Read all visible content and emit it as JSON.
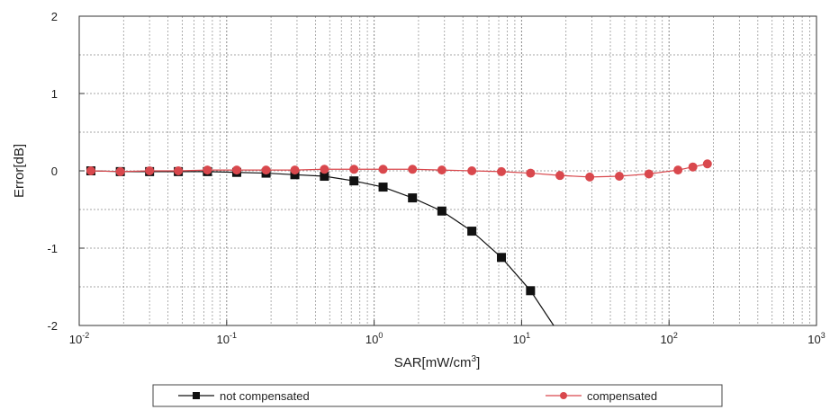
{
  "chart_data": {
    "type": "line",
    "title": "",
    "xlabel": "SAR[mW/cm³]",
    "ylabel": "Error[dB]",
    "xscale": "log",
    "xlim": [
      0.01,
      1000
    ],
    "ylim": [
      -2,
      2
    ],
    "grid": true,
    "x_ticks": [
      {
        "value": 0.01,
        "base": "10",
        "exp": "-2"
      },
      {
        "value": 0.1,
        "base": "10",
        "exp": "-1"
      },
      {
        "value": 1,
        "base": "10",
        "exp": "0"
      },
      {
        "value": 10,
        "base": "10",
        "exp": "1"
      },
      {
        "value": 100,
        "base": "10",
        "exp": "2"
      },
      {
        "value": 1000,
        "base": "10",
        "exp": "3"
      }
    ],
    "y_ticks": [
      {
        "value": 2,
        "label": "2"
      },
      {
        "value": 1,
        "label": "1"
      },
      {
        "value": 0,
        "label": "0"
      },
      {
        "value": -1,
        "label": "-1"
      },
      {
        "value": -2,
        "label": "-2"
      }
    ],
    "legend_position": "bottom",
    "series": [
      {
        "name": "not compensated",
        "color": "#111111",
        "marker": "square",
        "points": [
          {
            "x": 0.012,
            "y": 0.0
          },
          {
            "x": 0.019,
            "y": -0.01
          },
          {
            "x": 0.03,
            "y": -0.01
          },
          {
            "x": 0.047,
            "y": -0.01
          },
          {
            "x": 0.074,
            "y": -0.01
          },
          {
            "x": 0.117,
            "y": -0.02
          },
          {
            "x": 0.185,
            "y": -0.03
          },
          {
            "x": 0.29,
            "y": -0.05
          },
          {
            "x": 0.46,
            "y": -0.07
          },
          {
            "x": 0.73,
            "y": -0.13
          },
          {
            "x": 1.15,
            "y": -0.21
          },
          {
            "x": 1.82,
            "y": -0.35
          },
          {
            "x": 2.88,
            "y": -0.52
          },
          {
            "x": 4.6,
            "y": -0.78
          },
          {
            "x": 7.3,
            "y": -1.12
          },
          {
            "x": 11.5,
            "y": -1.55
          }
        ],
        "line_end": {
          "x": 16.5,
          "y": -2.0
        }
      },
      {
        "name": "compensated",
        "color": "#d9484d",
        "marker": "circle",
        "points": [
          {
            "x": 0.012,
            "y": 0.0
          },
          {
            "x": 0.019,
            "y": -0.01
          },
          {
            "x": 0.03,
            "y": 0.0
          },
          {
            "x": 0.047,
            "y": 0.0
          },
          {
            "x": 0.074,
            "y": 0.01
          },
          {
            "x": 0.117,
            "y": 0.01
          },
          {
            "x": 0.185,
            "y": 0.01
          },
          {
            "x": 0.29,
            "y": 0.01
          },
          {
            "x": 0.46,
            "y": 0.02
          },
          {
            "x": 0.73,
            "y": 0.02
          },
          {
            "x": 1.15,
            "y": 0.02
          },
          {
            "x": 1.82,
            "y": 0.02
          },
          {
            "x": 2.88,
            "y": 0.01
          },
          {
            "x": 4.6,
            "y": 0.0
          },
          {
            "x": 7.3,
            "y": -0.01
          },
          {
            "x": 11.5,
            "y": -0.03
          },
          {
            "x": 18.2,
            "y": -0.06
          },
          {
            "x": 29,
            "y": -0.08
          },
          {
            "x": 46,
            "y": -0.07
          },
          {
            "x": 73,
            "y": -0.04
          },
          {
            "x": 115,
            "y": 0.01
          },
          {
            "x": 145,
            "y": 0.05
          },
          {
            "x": 182,
            "y": 0.09
          }
        ]
      }
    ]
  }
}
